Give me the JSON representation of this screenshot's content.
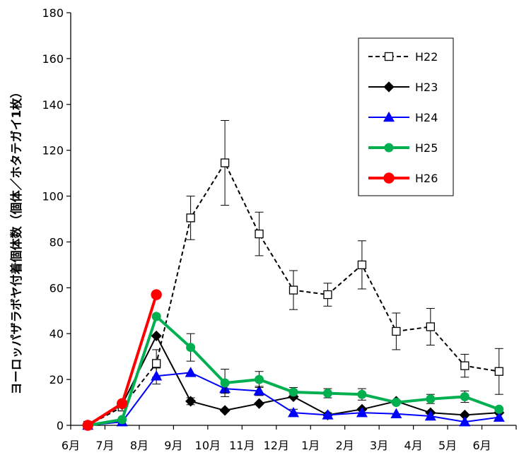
{
  "chart_data": {
    "type": "line",
    "title": "",
    "xlabel": "",
    "ylabel": "ヨーロッパザラボヤ付着個体数（個体／ホタテガイ1枚）",
    "ylim": [
      0,
      180
    ],
    "yticks": [
      0,
      20,
      40,
      60,
      80,
      100,
      120,
      140,
      160,
      180
    ],
    "categories": [
      "6月",
      "7月",
      "8月",
      "9月",
      "10月",
      "11月",
      "12月",
      "1月",
      "2月",
      "3月",
      "4月",
      "5月",
      "6月"
    ],
    "legend_position": "top-right",
    "grid": false,
    "series": [
      {
        "name": "H22",
        "color": "#000000",
        "line_style": "dashed",
        "marker": "square-open",
        "points": [
          {
            "x": 0.0,
            "y": 0,
            "err": 0
          },
          {
            "x": 1.0,
            "y": 8,
            "err": 0
          },
          {
            "x": 2.0,
            "y": 27,
            "err": 6
          },
          {
            "x": 3.0,
            "y": 90.5,
            "err": 9.5
          },
          {
            "x": 4.0,
            "y": 114.5,
            "err": 18.5
          },
          {
            "x": 5.0,
            "y": 83.5,
            "err": 9.5
          },
          {
            "x": 6.0,
            "y": 59,
            "err": 8.5
          },
          {
            "x": 7.0,
            "y": 57,
            "err": 5
          },
          {
            "x": 8.0,
            "y": 70,
            "err": 10.5
          },
          {
            "x": 9.0,
            "y": 41,
            "err": 8
          },
          {
            "x": 10.0,
            "y": 43,
            "err": 8
          },
          {
            "x": 11.0,
            "y": 26,
            "err": 5
          },
          {
            "x": 12.0,
            "y": 23.5,
            "err": 10
          }
        ]
      },
      {
        "name": "H23",
        "color": "#000000",
        "line_style": "solid",
        "marker": "diamond",
        "points": [
          {
            "x": 0.0,
            "y": 0,
            "err": 0
          },
          {
            "x": 1.0,
            "y": 9,
            "err": 0
          },
          {
            "x": 2.0,
            "y": 39,
            "err": 0
          },
          {
            "x": 3.0,
            "y": 10.5,
            "err": 1.5
          },
          {
            "x": 4.0,
            "y": 6.5,
            "err": 0
          },
          {
            "x": 5.0,
            "y": 9.5,
            "err": 0
          },
          {
            "x": 6.0,
            "y": 12.5,
            "err": 0
          },
          {
            "x": 7.0,
            "y": 4.5,
            "err": 0
          },
          {
            "x": 8.0,
            "y": 7,
            "err": 0
          },
          {
            "x": 9.0,
            "y": 10.5,
            "err": 0
          },
          {
            "x": 10.0,
            "y": 5.5,
            "err": 0
          },
          {
            "x": 11.0,
            "y": 4.5,
            "err": 0
          },
          {
            "x": 12.0,
            "y": 5.5,
            "err": 0
          }
        ]
      },
      {
        "name": "H24",
        "color": "#0000ff",
        "line_style": "solid",
        "marker": "triangle",
        "points": [
          {
            "x": 0.0,
            "y": 0,
            "err": 0
          },
          {
            "x": 1.0,
            "y": 1.5,
            "err": 0
          },
          {
            "x": 2.0,
            "y": 21.5,
            "err": 3.5
          },
          {
            "x": 3.0,
            "y": 23,
            "err": 0
          },
          {
            "x": 4.0,
            "y": 16,
            "err": 2
          },
          {
            "x": 5.0,
            "y": 15,
            "err": 2
          },
          {
            "x": 6.0,
            "y": 5.5,
            "err": 1.5
          },
          {
            "x": 7.0,
            "y": 4.5,
            "err": 1
          },
          {
            "x": 8.0,
            "y": 5.5,
            "err": 1
          },
          {
            "x": 9.0,
            "y": 5,
            "err": 0
          },
          {
            "x": 10.0,
            "y": 4,
            "err": 0
          },
          {
            "x": 11.0,
            "y": 1.5,
            "err": 0
          },
          {
            "x": 12.0,
            "y": 3.5,
            "err": 0
          }
        ]
      },
      {
        "name": "H25",
        "color": "#00b050",
        "line_style": "solid",
        "marker": "circle",
        "points": [
          {
            "x": 0.0,
            "y": 0,
            "err": 0
          },
          {
            "x": 1.0,
            "y": 2.5,
            "err": 0
          },
          {
            "x": 2.0,
            "y": 47.5,
            "err": 0
          },
          {
            "x": 3.0,
            "y": 34,
            "err": 6
          },
          {
            "x": 4.0,
            "y": 18.5,
            "err": 6
          },
          {
            "x": 5.0,
            "y": 20,
            "err": 3.5
          },
          {
            "x": 6.0,
            "y": 14.5,
            "err": 2
          },
          {
            "x": 7.0,
            "y": 14,
            "err": 2
          },
          {
            "x": 8.0,
            "y": 13.5,
            "err": 2.5
          },
          {
            "x": 9.0,
            "y": 10,
            "err": 0
          },
          {
            "x": 10.0,
            "y": 11.5,
            "err": 2
          },
          {
            "x": 11.0,
            "y": 12.5,
            "err": 2.5
          },
          {
            "x": 12.0,
            "y": 7,
            "err": 0
          }
        ]
      },
      {
        "name": "H26",
        "color": "#ff0000",
        "line_style": "solid",
        "marker": "circle",
        "points": [
          {
            "x": 0.0,
            "y": 0,
            "err": 0
          },
          {
            "x": 1.0,
            "y": 9.5,
            "err": 0
          },
          {
            "x": 2.0,
            "y": 57,
            "err": 0
          }
        ]
      }
    ]
  }
}
